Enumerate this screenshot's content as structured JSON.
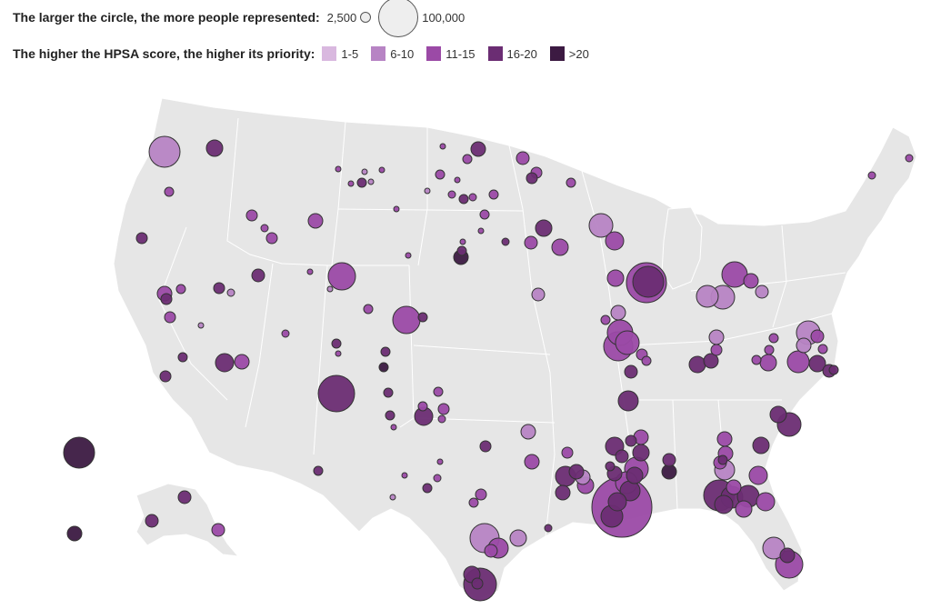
{
  "legend": {
    "size_title": "The larger the circle, the more people represented:",
    "size_small_label": "2,500",
    "size_big_label": "100,000",
    "color_title": "The higher the HPSA score, the higher its priority:",
    "score_bins": [
      {
        "label": "1-5",
        "color": "#d9b8df"
      },
      {
        "label": "6-10",
        "color": "#b784c4"
      },
      {
        "label": "11-15",
        "color": "#9b4aa6"
      },
      {
        "label": "16-20",
        "color": "#6b2d73"
      },
      {
        "label": ">20",
        "color": "#3c1a42"
      }
    ]
  },
  "map": {
    "land_color": "#e6e6e6",
    "border_color": "#ffffff"
  },
  "marker_bins_per_map_cluster": {
    "hawaii_alaska": [
      "16-20",
      ">20",
      "16-20",
      "11-15"
    ]
  }
}
